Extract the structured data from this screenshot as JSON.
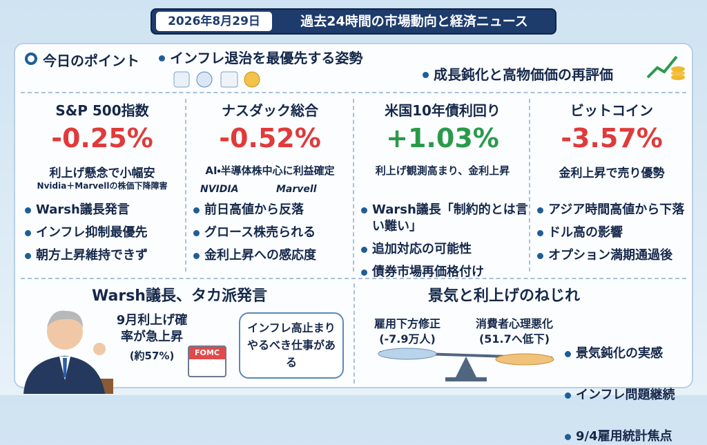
{
  "header": {
    "date": "2026年8月29日",
    "title": "過去24時間の市場動向と経済ニュース"
  },
  "points": {
    "label": "今日のポイント",
    "items": [
      "インフレ退治を最優先する姿勢",
      "成長鈍化と高物価価の再評価"
    ]
  },
  "markets": [
    {
      "name": "S&P 500指数",
      "change": "-0.25%",
      "headline": "利上げ懸念で小幅安",
      "subline": "Nvidia＋Marvellの株価下降障害",
      "bullets": [
        "Warsh議長発言",
        "インフレ抑制最優先",
        "朝方上昇維持できず"
      ]
    },
    {
      "name": "ナスダック総合",
      "change": "-0.52%",
      "headline": "AI・半導体株中心に利益確定",
      "logos": [
        "NVIDIA",
        "Marvell"
      ],
      "bullets": [
        "前日高値から反落",
        "グロース株売られる",
        "金利上昇への感応度"
      ]
    },
    {
      "name": "米国10年債利回り",
      "change": "+1.03%",
      "headline": "利上げ観測高まり、金利上昇",
      "bullets": [
        "Warsh議長「制約的とは言い難い」",
        "追加対応の可能性",
        "債券市場再価格付け"
      ]
    },
    {
      "name": "ビットコイン",
      "change": "-3.57%",
      "headline": "金利上昇で売り優勢",
      "bullets": [
        "アジア時間高値から下落",
        "ドル高の影響",
        "オプション満期通過後"
      ]
    }
  ],
  "warsh": {
    "title": "Warsh議長、タカ派発言",
    "callout": "9月利上げ確率が急上昇",
    "probability": "(約57%)",
    "calendar": "FOMC",
    "quote": "インフレ高止まりやるべき仕事がある"
  },
  "economy": {
    "title": "景気と利上げのねじれ",
    "left": "雇用下方修正",
    "left_value": "(-7.9万人)",
    "right": "消費者心理悪化",
    "right_value": "(51.7へ低下)",
    "bullets": [
      "景気鈍化の実感",
      "インフレ問題継続",
      "9/4雇用統計焦点"
    ]
  }
}
